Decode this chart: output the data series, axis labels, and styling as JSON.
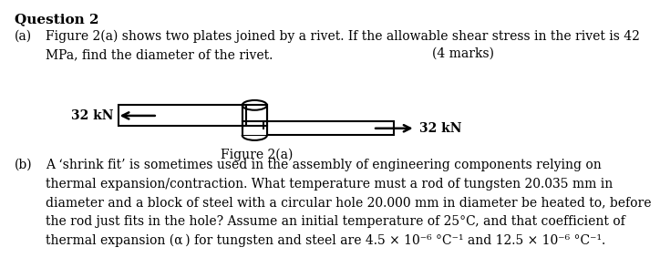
{
  "background_color": "#ffffff",
  "text_color": "#000000",
  "question_title": "Question 2",
  "part_a_label": "(a)",
  "part_a_text": "Figure 2(a) shows two plates joined by a rivet. If the allowable shear stress in the rivet is 42\nMPa, find the diameter of the rivet.",
  "marks_a": "(4 marks)",
  "figure_label": "Figure 2(a)",
  "force_label_left": "32 kN",
  "force_label_right": "32 kN",
  "part_b_label": "(b)",
  "part_b_text": "A ‘shrink fit’ is sometimes used in the assembly of engineering components relying on\nthermal expansion/contraction. What temperature must a rod of tungsten 20.035 mm in\ndiameter and a block of steel with a circular hole 20.000 mm in diameter be heated to, before\nthe rod just fits in the hole? Assume an initial temperature of 25°C, and that coefficient of\nthermal expansion (α ) for tungsten and steel are 4.5 × 10⁻⁶ °C⁻¹ and 12.5 × 10⁻⁶ °C⁻¹."
}
